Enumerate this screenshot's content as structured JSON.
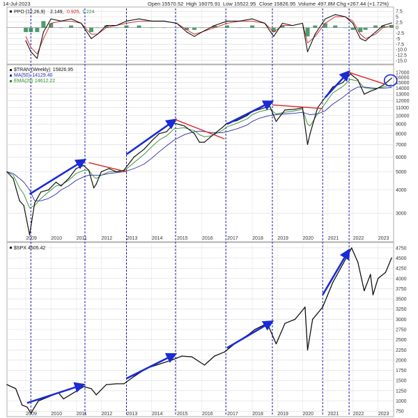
{
  "header": {
    "date": "14-Jul-2023",
    "open_label": "Open",
    "open_value": "15570.52",
    "high_label": "High",
    "high_value": "16075.91",
    "low_label": "Low",
    "low_value": "15522.95",
    "close_label": "Close",
    "close_value": "15826.95",
    "volume_label": "Volume",
    "volume_value": "497.8M",
    "chg_label": "Chg",
    "chg_value": "+267.44 (+1.72%)"
  },
  "chart_data": [
    {
      "type": "line",
      "panel": "ppo",
      "legend": {
        "name": "PPO (12,26,9)",
        "values": [
          "2.149,",
          "0.925,",
          "1.224"
        ],
        "colors": [
          "#111111",
          "#cc2222",
          "#2e8b57"
        ]
      },
      "yticks": [
        7.5,
        5.0,
        2.5,
        0.0,
        -2.5,
        -5.0,
        -7.5,
        -10.0,
        -12.5,
        -15.0
      ],
      "ytick_labels": [
        "7.5",
        "5",
        "2.5",
        "0",
        "-2.5",
        "-5",
        "-7.5",
        "-10.0",
        "-12.5",
        "-15.0"
      ],
      "ylim": [
        -16.0,
        8.5
      ],
      "x": [
        2009.0,
        2009.2,
        2009.45,
        2009.7,
        2010.0,
        2010.4,
        2010.8,
        2011.2,
        2011.6,
        2011.85,
        2012.2,
        2012.6,
        2013.0,
        2013.5,
        2014.0,
        2014.5,
        2015.0,
        2015.4,
        2015.7,
        2016.0,
        2016.5,
        2017.0,
        2017.5,
        2018.0,
        2018.5,
        2018.85,
        2019.2,
        2019.6,
        2020.0,
        2020.2,
        2020.5,
        2020.9,
        2021.3,
        2021.7,
        2022.0,
        2022.3,
        2022.5,
        2022.9,
        2023.2,
        2023.54
      ],
      "series": [
        {
          "role": "ppo",
          "color": "#111111",
          "values": [
            -6,
            -11,
            -14,
            -2,
            4,
            3,
            4,
            2,
            -5,
            -3,
            1,
            1,
            3,
            4,
            3,
            3,
            2,
            -2,
            -4,
            -2,
            1,
            3,
            3,
            4,
            2,
            -4,
            2,
            1,
            2,
            -11,
            -3,
            4,
            6,
            5,
            2,
            -5,
            -6,
            -2,
            1,
            2.15
          ]
        },
        {
          "role": "signal",
          "color": "#cc2222",
          "values": [
            -4,
            -9,
            -12,
            -5,
            2,
            3,
            3,
            2,
            -3,
            -3,
            0,
            1,
            2,
            3,
            3,
            3,
            2,
            -1,
            -3,
            -2,
            0,
            2,
            3,
            3,
            2,
            -2,
            1,
            1,
            2,
            -7,
            -4,
            2,
            5,
            5,
            3,
            -3,
            -5,
            -3,
            0,
            0.93
          ]
        },
        {
          "role": "histogram",
          "color": "#2e8b57",
          "values": [
            -2,
            -2,
            -2,
            3,
            2,
            0,
            1,
            0,
            -2,
            0,
            1,
            0,
            1,
            1,
            0,
            0,
            0,
            -1,
            -1,
            0,
            1,
            1,
            0,
            1,
            0,
            -2,
            1,
            0,
            0,
            -4,
            1,
            2,
            1,
            0,
            -1,
            -2,
            -1,
            1,
            1,
            1.22
          ]
        }
      ]
    },
    {
      "type": "line",
      "panel": "price",
      "legend": [
        {
          "name": "$TRAN (Weekly)",
          "value": "15826.95",
          "color": "#111111"
        },
        {
          "name": "MA(50)",
          "value": "14129.40",
          "color": "#2a2aa8"
        },
        {
          "name": "EMA(20)",
          "value": "14612.22",
          "color": "#2e8b2e"
        }
      ],
      "log_scale": true,
      "ylim": [
        2150,
        18200
      ],
      "yticks": [
        3000,
        4000,
        5000,
        6000,
        7000,
        8000,
        9000,
        10000,
        11000,
        12000,
        13000,
        14000,
        15000,
        16000,
        17000
      ],
      "ytick_labels": [
        "3000",
        "4000",
        "5000",
        "6000",
        "7000",
        "8000",
        "9000",
        "10000",
        "11000",
        "12000",
        "13000",
        "14000",
        "15000",
        "16000",
        "17000"
      ],
      "xticks": [
        2009,
        2010,
        2011,
        2012,
        2013,
        2014,
        2015,
        2016,
        2017,
        2018,
        2019,
        2020,
        2021,
        2022,
        2023
      ],
      "xtick_labels": [
        "2009",
        "2010",
        "2011",
        "2012",
        "2013",
        "2014",
        "2015",
        "2016",
        "2017",
        "2018",
        "2019",
        "2020",
        "2021",
        "2022",
        "2023"
      ],
      "x": [
        2008.25,
        2008.5,
        2008.75,
        2008.92,
        2009.15,
        2009.35,
        2009.6,
        2009.9,
        2010.2,
        2010.4,
        2010.7,
        2011.0,
        2011.3,
        2011.5,
        2011.7,
        2011.8,
        2012.0,
        2012.3,
        2012.6,
        2012.9,
        2013.3,
        2013.7,
        2014.0,
        2014.3,
        2014.6,
        2014.9,
        2015.3,
        2015.7,
        2015.9,
        2016.1,
        2016.4,
        2016.8,
        2017.0,
        2017.4,
        2017.8,
        2018.0,
        2018.3,
        2018.7,
        2018.95,
        2019.3,
        2019.7,
        2020.0,
        2020.2,
        2020.3,
        2020.6,
        2020.9,
        2021.2,
        2021.6,
        2021.9,
        2022.2,
        2022.45,
        2022.7,
        2022.9,
        2023.2,
        2023.54
      ],
      "series": [
        {
          "name": "$TRAN (Weekly)",
          "color": "#111111",
          "values": [
            5000,
            4600,
            3500,
            3300,
            2300,
            3400,
            3900,
            4000,
            4400,
            4200,
            4600,
            5200,
            5400,
            5100,
            4100,
            4300,
            5000,
            5200,
            5000,
            5100,
            6000,
            6600,
            7300,
            8000,
            8200,
            9100,
            8800,
            8000,
            7200,
            7200,
            7800,
            8600,
            9100,
            9400,
            10000,
            10500,
            10800,
            11200,
            9300,
            10700,
            10800,
            11000,
            7000,
            8000,
            11000,
            12500,
            14200,
            15000,
            16700,
            15500,
            13000,
            13500,
            13800,
            14500,
            15827
          ]
        },
        {
          "name": "MA(50)",
          "color": "#2a2aa8",
          "values": [
            5000,
            4900,
            4600,
            4400,
            4000,
            3500,
            3500,
            3600,
            3800,
            4000,
            4200,
            4500,
            4700,
            4800,
            4800,
            4800,
            4800,
            4900,
            4950,
            5000,
            5200,
            5500,
            5900,
            6400,
            6900,
            7400,
            7900,
            8200,
            8250,
            8200,
            8100,
            8100,
            8200,
            8500,
            8900,
            9300,
            9700,
            10000,
            10100,
            10200,
            10300,
            10400,
            10200,
            10100,
            10200,
            10600,
            11500,
            12500,
            13500,
            14200,
            14200,
            14100,
            14000,
            14000,
            14129
          ]
        },
        {
          "name": "EMA(20)",
          "color": "#2e8b2e",
          "values": [
            5000,
            4800,
            4100,
            3800,
            3200,
            3300,
            3600,
            3900,
            4200,
            4250,
            4500,
            4900,
            5100,
            5100,
            4700,
            4600,
            4800,
            5000,
            5000,
            5050,
            5600,
            6200,
            6800,
            7400,
            7800,
            8500,
            8600,
            8300,
            7900,
            7700,
            7800,
            8300,
            8700,
            9100,
            9600,
            10100,
            10500,
            10800,
            10200,
            10400,
            10600,
            10800,
            9000,
            8800,
            10200,
            11600,
            13200,
            14300,
            15600,
            15300,
            14100,
            13900,
            13900,
            14200,
            14612
          ]
        }
      ],
      "trend_lines": [
        {
          "color": "#1a2bd6",
          "x": [
            2009.15,
            2011.35
          ],
          "y": [
            3800,
            5800
          ]
        },
        {
          "color": "#1a2bd6",
          "x": [
            2013.0,
            2014.95
          ],
          "y": [
            6200,
            9500
          ]
        },
        {
          "color": "#1a2bd6",
          "x": [
            2017.0,
            2018.8
          ],
          "y": [
            9000,
            11900
          ]
        },
        {
          "color": "#1a2bd6",
          "x": [
            2020.9,
            2021.85
          ],
          "y": [
            12500,
            17200
          ]
        },
        {
          "color": "#dd2222",
          "x": [
            2011.5,
            2013.0
          ],
          "y": [
            5600,
            5000
          ]
        },
        {
          "color": "#dd2222",
          "x": [
            2014.95,
            2016.9
          ],
          "y": [
            9500,
            7500
          ]
        },
        {
          "color": "#dd2222",
          "x": [
            2018.8,
            2020.8
          ],
          "y": [
            11400,
            10900
          ]
        },
        {
          "color": "#dd2222",
          "x": [
            2021.85,
            2023.35
          ],
          "y": [
            17000,
            14600
          ]
        }
      ],
      "circle": {
        "x": 2023.5,
        "y": 15400,
        "color": "#1a2bd6"
      }
    },
    {
      "type": "line",
      "panel": "spx",
      "legend": {
        "name": "$SPX",
        "value": "4505.42",
        "color": "#111111"
      },
      "ylim": [
        650,
        4850
      ],
      "yticks": [
        750,
        1000,
        1250,
        1500,
        1750,
        2000,
        2250,
        2500,
        2750,
        3000,
        3250,
        3500,
        3750,
        4000,
        4250,
        4500,
        4750
      ],
      "ytick_labels": [
        "750",
        "1000",
        "1250",
        "1500",
        "1750",
        "2000",
        "2250",
        "2500",
        "2750",
        "3000",
        "3250",
        "3500",
        "3750",
        "4000",
        "4250",
        "4500",
        "4750"
      ],
      "x": [
        2008.25,
        2008.6,
        2008.85,
        2009.05,
        2009.2,
        2009.5,
        2009.9,
        2010.3,
        2010.5,
        2010.9,
        2011.3,
        2011.6,
        2011.8,
        2012.2,
        2012.6,
        2012.9,
        2013.3,
        2013.8,
        2014.3,
        2014.8,
        2015.2,
        2015.6,
        2016.1,
        2016.5,
        2016.9,
        2017.3,
        2017.9,
        2018.1,
        2018.6,
        2018.95,
        2019.3,
        2019.7,
        2020.1,
        2020.2,
        2020.4,
        2020.8,
        2021.2,
        2021.6,
        2021.95,
        2022.2,
        2022.45,
        2022.7,
        2022.8,
        2023.0,
        2023.3,
        2023.54
      ],
      "series": [
        {
          "name": "$SPX",
          "color": "#111111",
          "values": [
            1400,
            1300,
            900,
            850,
            700,
            1000,
            1100,
            1200,
            1050,
            1200,
            1350,
            1300,
            1150,
            1400,
            1420,
            1420,
            1600,
            1800,
            1900,
            2000,
            2100,
            2080,
            1880,
            2100,
            2200,
            2400,
            2650,
            2750,
            2900,
            2400,
            2900,
            3000,
            3300,
            2250,
            3000,
            3300,
            3900,
            4350,
            4750,
            4400,
            3700,
            4100,
            3600,
            4000,
            4150,
            4505
          ]
        }
      ],
      "trend_lines": [
        {
          "color": "#1a2bd6",
          "x": [
            2009.05,
            2011.3
          ],
          "y": [
            950,
            1400
          ]
        },
        {
          "color": "#1a2bd6",
          "x": [
            2013.0,
            2014.95
          ],
          "y": [
            1550,
            2150
          ]
        },
        {
          "color": "#1a2bd6",
          "x": [
            2017.0,
            2018.8
          ],
          "y": [
            2300,
            2950
          ]
        },
        {
          "color": "#1a2bd6",
          "x": [
            2020.8,
            2021.85
          ],
          "y": [
            3600,
            4700
          ]
        }
      ]
    }
  ],
  "vertical_markers": [
    2009.2,
    2011.35,
    2013.0,
    2014.95,
    2016.95,
    2018.8,
    2020.8,
    2021.85
  ]
}
